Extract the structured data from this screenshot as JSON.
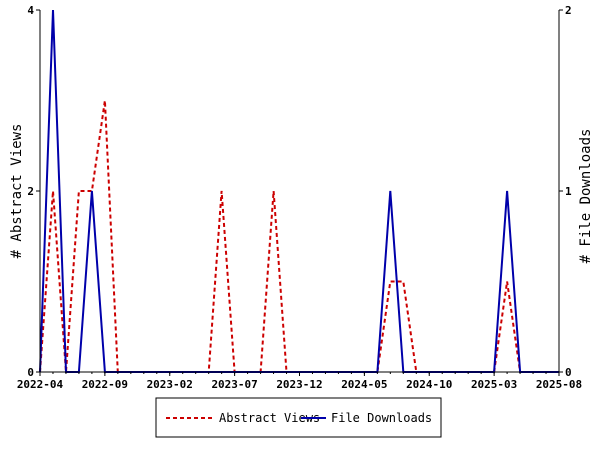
{
  "chart_data": {
    "type": "line",
    "xlabel": "",
    "ylabel_left": "# Abstract Views",
    "ylabel_right": "# File Downloads",
    "x_ticks": [
      "2022-04",
      "2022-09",
      "2023-02",
      "2023-07",
      "2023-12",
      "2024-05",
      "2024-10",
      "2025-03",
      "2025-08"
    ],
    "y_left_ticks": [
      "0",
      "2",
      "4"
    ],
    "y_right_ticks": [
      "0",
      "1",
      "2"
    ],
    "y_left_range": [
      0,
      4
    ],
    "y_right_range": [
      0,
      2
    ],
    "grid": false,
    "legend_position": "bottom",
    "series": [
      {
        "name": "Abstract Views",
        "axis": "left",
        "color": "#cc0000",
        "dash": "dashed",
        "x": [
          "2022-04",
          "2022-05",
          "2022-06",
          "2022-07",
          "2022-08",
          "2022-09",
          "2022-10",
          "2022-11",
          "2022-12",
          "2023-01",
          "2023-02",
          "2023-03",
          "2023-04",
          "2023-05",
          "2023-06",
          "2023-07",
          "2023-08",
          "2023-09",
          "2023-10",
          "2023-11",
          "2023-12",
          "2024-01",
          "2024-02",
          "2024-03",
          "2024-04",
          "2024-05",
          "2024-06",
          "2024-07",
          "2024-08",
          "2024-09",
          "2024-10",
          "2024-11",
          "2024-12",
          "2025-01",
          "2025-02",
          "2025-03",
          "2025-04",
          "2025-05",
          "2025-06",
          "2025-07",
          "2025-08"
        ],
        "values": [
          0,
          2,
          0,
          2,
          2,
          3,
          0,
          0,
          0,
          0,
          0,
          0,
          0,
          0,
          2,
          0,
          0,
          0,
          2,
          0,
          0,
          0,
          0,
          0,
          0,
          0,
          0,
          1,
          1,
          0,
          0,
          0,
          0,
          0,
          0,
          0,
          1,
          0,
          0,
          0,
          0
        ]
      },
      {
        "name": "File Downloads",
        "axis": "right",
        "color": "#0000aa",
        "dash": "solid",
        "x": [
          "2022-04",
          "2022-05",
          "2022-06",
          "2022-07",
          "2022-08",
          "2022-09",
          "2022-10",
          "2022-11",
          "2022-12",
          "2023-01",
          "2023-02",
          "2023-03",
          "2023-04",
          "2023-05",
          "2023-06",
          "2023-07",
          "2023-08",
          "2023-09",
          "2023-10",
          "2023-11",
          "2023-12",
          "2024-01",
          "2024-02",
          "2024-03",
          "2024-04",
          "2024-05",
          "2024-06",
          "2024-07",
          "2024-08",
          "2024-09",
          "2024-10",
          "2024-11",
          "2024-12",
          "2025-01",
          "2025-02",
          "2025-03",
          "2025-04",
          "2025-05",
          "2025-06",
          "2025-07",
          "2025-08"
        ],
        "values": [
          0,
          2,
          0,
          0,
          1,
          0,
          0,
          0,
          0,
          0,
          0,
          0,
          0,
          0,
          0,
          0,
          0,
          0,
          0,
          0,
          0,
          0,
          0,
          0,
          0,
          0,
          0,
          1,
          0,
          0,
          0,
          0,
          0,
          0,
          0,
          0,
          1,
          0,
          0,
          0,
          0
        ]
      }
    ]
  }
}
